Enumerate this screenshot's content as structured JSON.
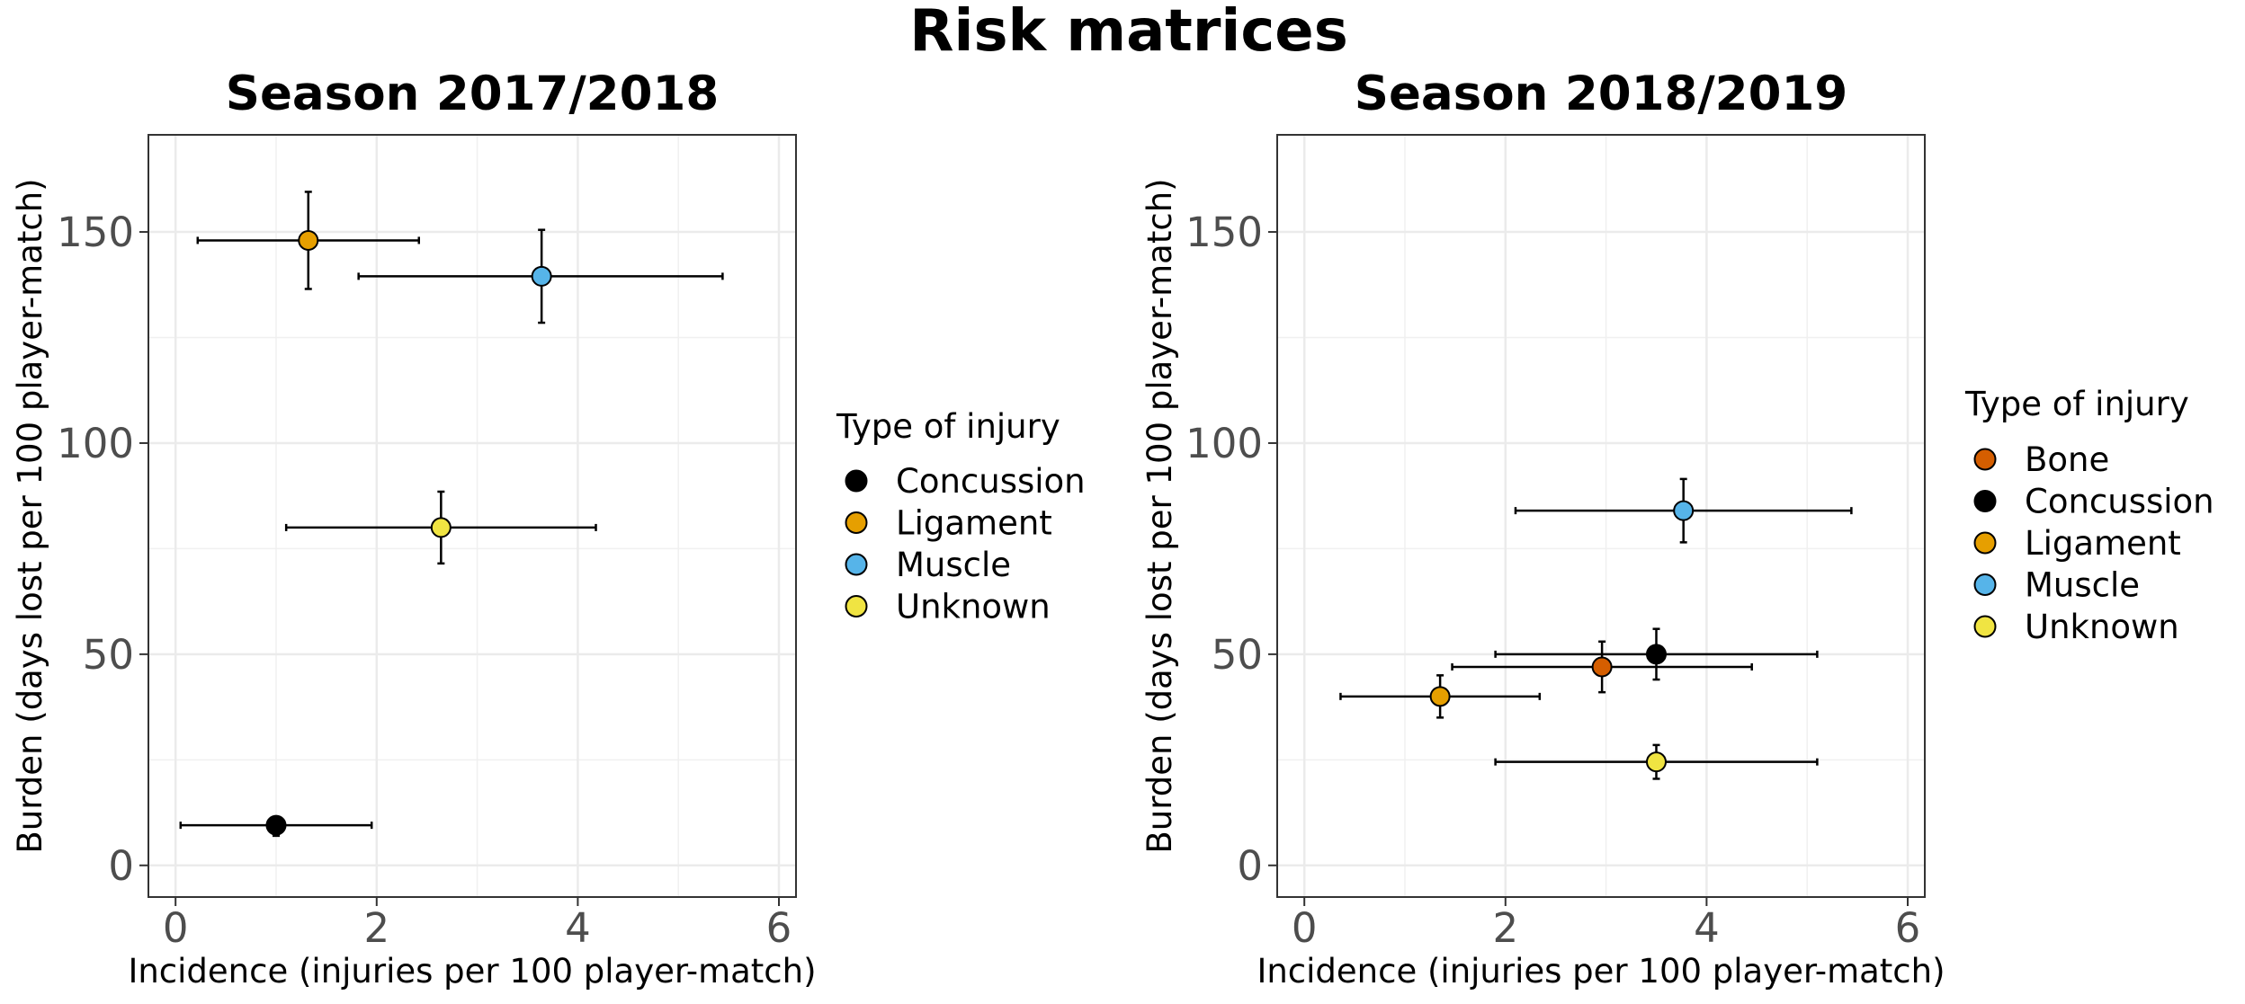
{
  "title": "Risk matrices",
  "colors": {
    "Bone": "#D55E00",
    "Concussion": "#000000",
    "Ligament": "#E69F00",
    "Muscle": "#56B4E9",
    "Unknown": "#F0E442"
  },
  "chart_data": [
    {
      "type": "scatter",
      "title": "Season 2017/2018",
      "xlabel": "Incidence (injuries per 100 player-match)",
      "ylabel": "Burden (days lost per 100 player-match)",
      "xlim": [
        -0.27,
        6.17
      ],
      "ylim": [
        -7.5,
        173
      ],
      "xticks": [
        0,
        2,
        4,
        6
      ],
      "yticks": [
        0,
        50,
        100,
        150
      ],
      "legend_title": "Type of injury",
      "legend": [
        "Concussion",
        "Ligament",
        "Muscle",
        "Unknown"
      ],
      "points": [
        {
          "type": "Concussion",
          "x": 1.0,
          "y": 9.5,
          "x_lo": 0.05,
          "x_hi": 1.95,
          "y_lo": 7.0,
          "y_hi": 11.5
        },
        {
          "type": "Ligament",
          "x": 1.32,
          "y": 148.0,
          "x_lo": 0.22,
          "x_hi": 2.42,
          "y_lo": 136.5,
          "y_hi": 159.5
        },
        {
          "type": "Muscle",
          "x": 3.64,
          "y": 139.5,
          "x_lo": 1.82,
          "x_hi": 5.44,
          "y_lo": 128.5,
          "y_hi": 150.5
        },
        {
          "type": "Unknown",
          "x": 2.64,
          "y": 80.0,
          "x_lo": 1.1,
          "x_hi": 4.18,
          "y_lo": 71.5,
          "y_hi": 88.5
        }
      ]
    },
    {
      "type": "scatter",
      "title": "Season 2018/2019",
      "xlabel": "Incidence (injuries per 100 player-match)",
      "ylabel": "Burden (days lost per 100 player-match)",
      "xlim": [
        -0.27,
        6.17
      ],
      "ylim": [
        -7.5,
        173
      ],
      "xticks": [
        0,
        2,
        4,
        6
      ],
      "yticks": [
        0,
        50,
        100,
        150
      ],
      "legend_title": "Type of injury",
      "legend": [
        "Bone",
        "Concussion",
        "Ligament",
        "Muscle",
        "Unknown"
      ],
      "points": [
        {
          "type": "Muscle",
          "x": 3.77,
          "y": 84.0,
          "x_lo": 2.1,
          "x_hi": 5.44,
          "y_lo": 76.5,
          "y_hi": 91.5
        },
        {
          "type": "Concussion",
          "x": 3.5,
          "y": 50.0,
          "x_lo": 1.9,
          "x_hi": 5.1,
          "y_lo": 44.0,
          "y_hi": 56.0
        },
        {
          "type": "Bone",
          "x": 2.96,
          "y": 47.0,
          "x_lo": 1.47,
          "x_hi": 4.45,
          "y_lo": 41.0,
          "y_hi": 53.0
        },
        {
          "type": "Ligament",
          "x": 1.35,
          "y": 40.0,
          "x_lo": 0.36,
          "x_hi": 2.34,
          "y_lo": 35.0,
          "y_hi": 45.0
        },
        {
          "type": "Unknown",
          "x": 3.5,
          "y": 24.5,
          "x_lo": 1.9,
          "x_hi": 5.1,
          "y_lo": 20.5,
          "y_hi": 28.5
        }
      ]
    }
  ]
}
